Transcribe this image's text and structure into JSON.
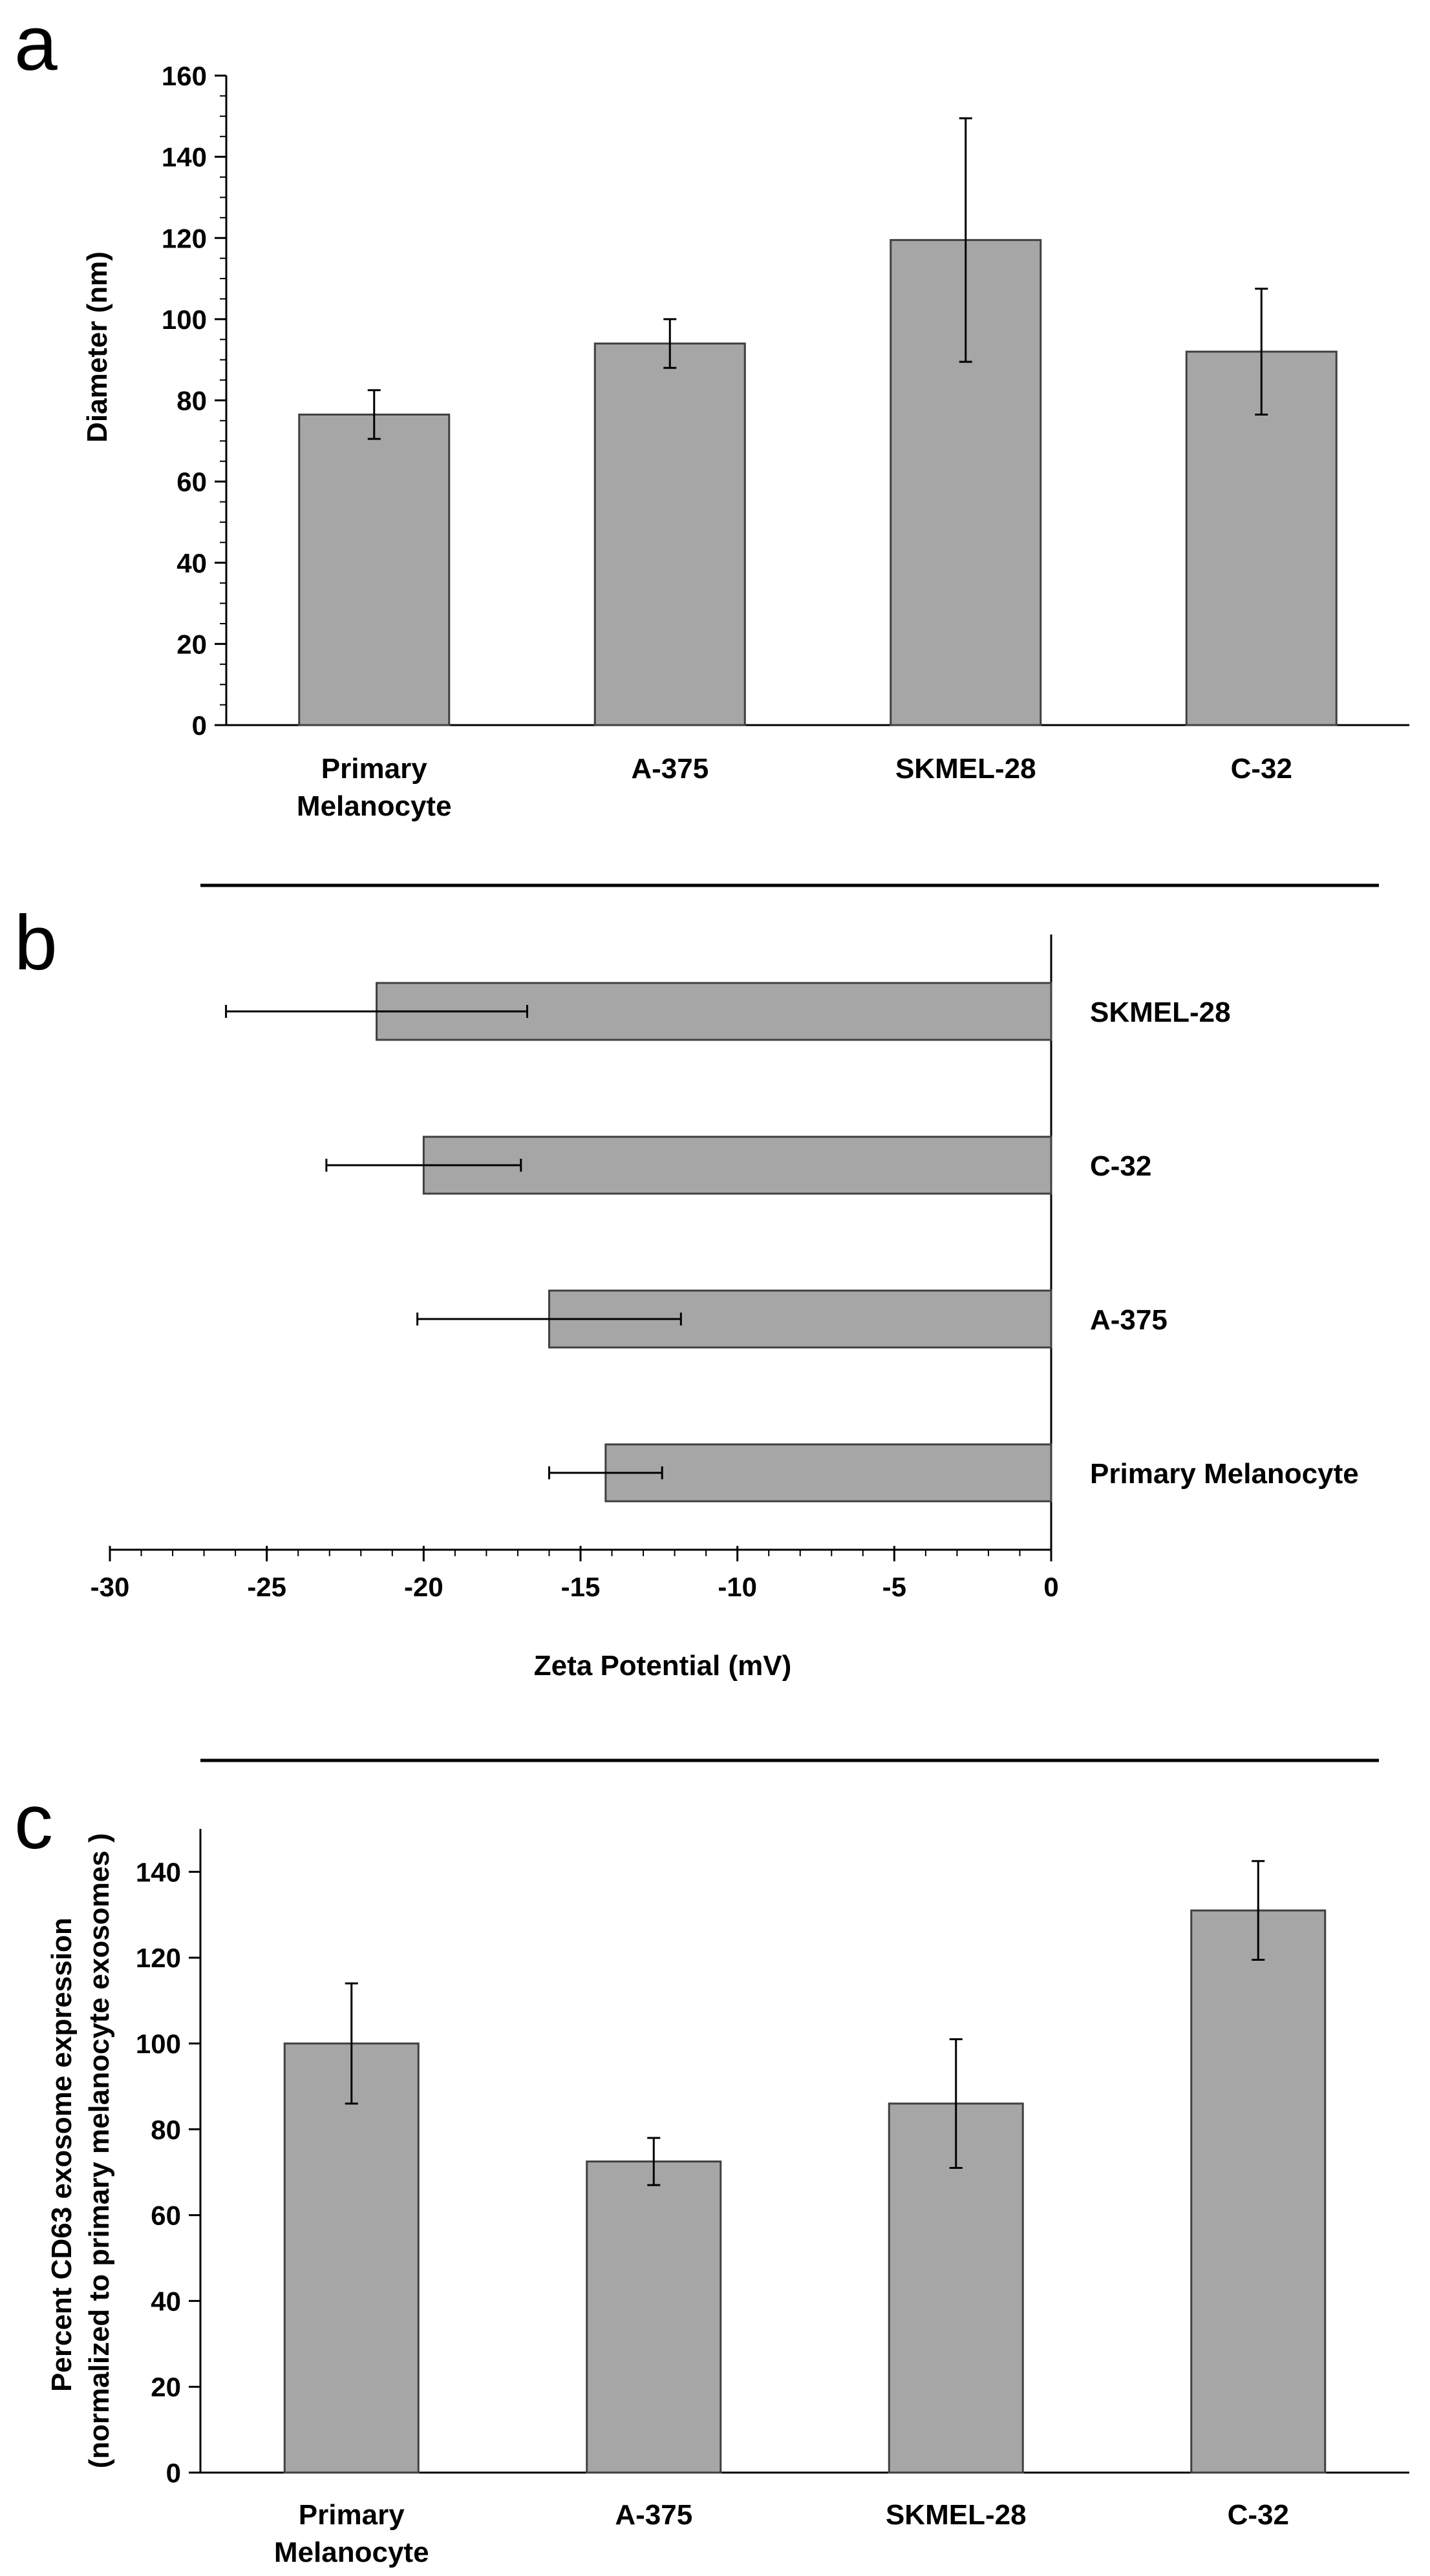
{
  "colors": {
    "bar_fill": "#a6a6a6",
    "bar_stroke": "#404040",
    "axis": "#000000",
    "divider": "#000000"
  },
  "chart_data": [
    {
      "panel_label": "a",
      "type": "bar",
      "orientation": "vertical",
      "title": "",
      "xlabel": "",
      "ylabel": "Diameter (nm)",
      "ylim": [
        0,
        160
      ],
      "ticks": [
        "0",
        "20",
        "40",
        "60",
        "80",
        "100",
        "120",
        "140",
        "160"
      ],
      "tick_values": [
        0,
        20,
        40,
        60,
        80,
        100,
        120,
        140,
        160
      ],
      "minor_step": 5,
      "categories": [
        [
          "Primary",
          "Melanocyte"
        ],
        [
          "A-375"
        ],
        [
          "SKMEL-28"
        ],
        [
          "C-32"
        ]
      ],
      "values": [
        76.5,
        94,
        119.5,
        92
      ],
      "errors": [
        6,
        6,
        30,
        15.5
      ]
    },
    {
      "panel_label": "b",
      "type": "bar",
      "orientation": "horizontal",
      "title": "",
      "xlabel": "Zeta Potential (mV)",
      "ylabel": "",
      "xlim": [
        -30,
        0
      ],
      "ticks": [
        "-30",
        "-25",
        "-20",
        "-15",
        "-10",
        "-5",
        "0"
      ],
      "tick_values": [
        -30,
        -25,
        -20,
        -15,
        -10,
        -5,
        0
      ],
      "minor_step": 1,
      "categories": [
        "SKMEL-28",
        "C-32",
        "A-375",
        "Primary Melanocyte"
      ],
      "values": [
        -21.5,
        -20,
        -16,
        -14.2
      ],
      "errors": [
        4.8,
        3.1,
        4.2,
        1.8
      ]
    },
    {
      "panel_label": "c",
      "type": "bar",
      "orientation": "vertical",
      "title": "",
      "xlabel": "",
      "ylabel": [
        "Percent CD63 exosome expression",
        "(normalized to primary melanocyte exosomes )"
      ],
      "ylim": [
        0,
        150
      ],
      "ticks": [
        "0",
        "20",
        "40",
        "60",
        "80",
        "100",
        "120",
        "140"
      ],
      "tick_values": [
        0,
        20,
        40,
        60,
        80,
        100,
        120,
        140
      ],
      "minor_step": 0,
      "categories": [
        [
          "Primary",
          "Melanocyte"
        ],
        [
          "A-375"
        ],
        [
          "SKMEL-28"
        ],
        [
          "C-32"
        ]
      ],
      "values": [
        100,
        72.5,
        86,
        131
      ],
      "errors": [
        14,
        5.5,
        15,
        11.5
      ]
    }
  ]
}
